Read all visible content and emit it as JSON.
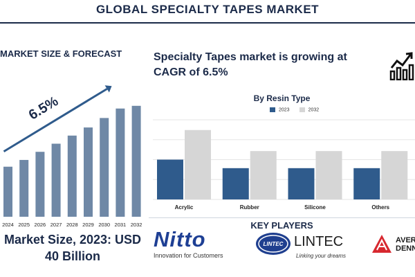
{
  "header": {
    "title": "GLOBAL SPECIALTY TAPES MARKET"
  },
  "left_panel": {
    "subtitle": "MARKET SIZE & FORECAST",
    "growth_label": "6.5%",
    "size_line1": "Market Size, 2023: USD",
    "size_line2": "40 Billion"
  },
  "right_panel": {
    "headline_line1": "Specialty Tapes market is growing at",
    "headline_line2": "CAGR of 6.5%",
    "chart_title": "By Resin Type",
    "legend": [
      "2023",
      "2032"
    ]
  },
  "key_players": {
    "title": "KEY PLAYERS",
    "nitto_name": "Nitto",
    "nitto_tagline": "Innovation for Customers",
    "lintec_name": "LINTEC",
    "lintec_badge": "LINTEC",
    "lintec_tagline": "Linking your dreams",
    "avery_line1": "AVERY",
    "avery_line2": "DENNI"
  },
  "colors": {
    "navy": "#1b2a49",
    "bar_blue": "#6f88a6",
    "series_2023": "#2f5b8c",
    "series_2032": "#d6d6d6",
    "nitto_blue": "#1e3f94",
    "avery_red": "#d7282f"
  },
  "icons": [
    "trend-chart-icon",
    "growth-arrow-icon"
  ],
  "chart_data": [
    {
      "type": "bar",
      "categories": [
        "2024",
        "2025",
        "2026",
        "2027",
        "2028",
        "2029",
        "2030",
        "2031",
        "2032"
      ],
      "values": [
        40.5,
        43,
        46,
        49,
        52,
        55,
        58.5,
        62,
        63
      ],
      "ylim": [
        22,
        65
      ],
      "annotation": "6.5%"
    },
    {
      "type": "bar",
      "categories": [
        "Acrylic",
        "Rubber",
        "Silicone",
        "Others"
      ],
      "series": [
        {
          "name": "2023",
          "values": [
            7,
            5.5,
            5.5,
            5.5
          ]
        },
        {
          "name": "2032",
          "values": [
            12.2,
            8.5,
            8.5,
            8.5
          ]
        }
      ],
      "ylim": [
        0,
        14
      ],
      "grid": true,
      "legend": "top"
    }
  ]
}
